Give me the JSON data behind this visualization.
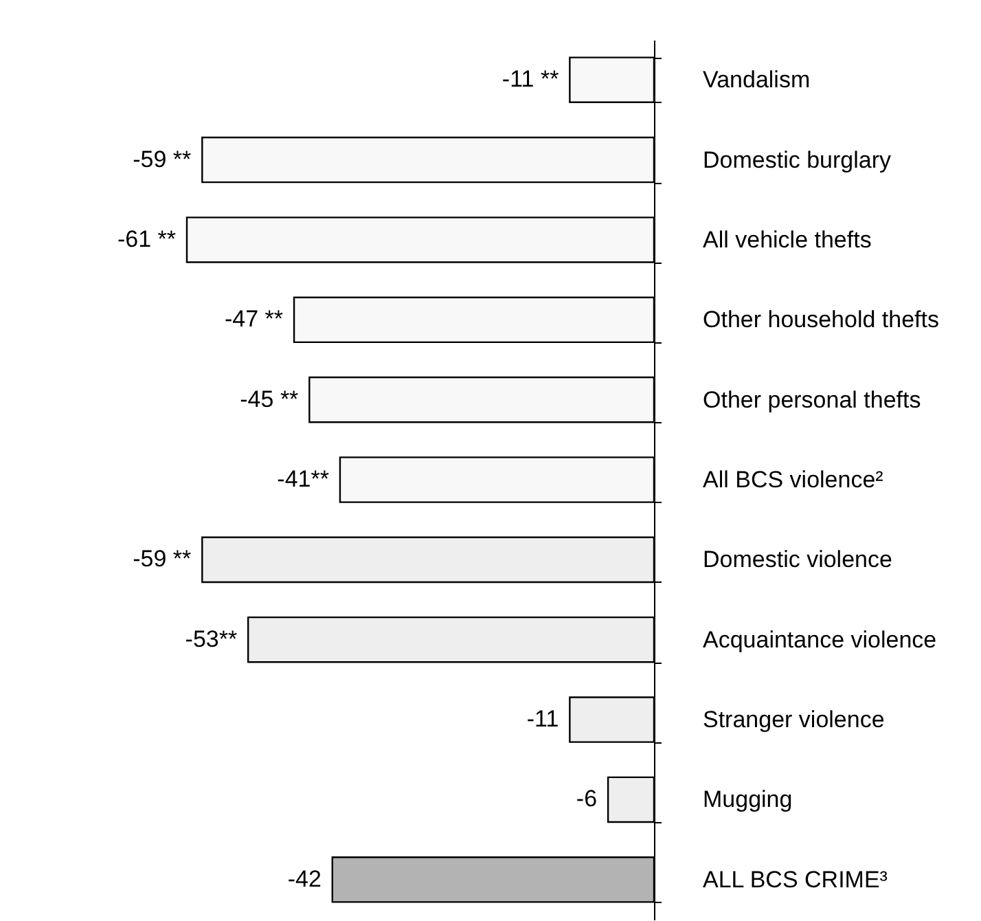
{
  "chart_data": {
    "type": "bar",
    "orientation": "horizontal",
    "categories": [
      "Vandalism",
      "Domestic burglary",
      "All vehicle thefts",
      "Other household thefts",
      "Other personal thefts",
      "All BCS violence²",
      "Domestic violence",
      "Acquaintance violence",
      "Stranger violence",
      "Mugging",
      "ALL BCS CRIME³"
    ],
    "values": [
      -11,
      -59,
      -61,
      -47,
      -45,
      -41,
      -59,
      -53,
      -11,
      -6,
      -42
    ],
    "colors": [
      "#f8f8f8",
      "#f8f8f8",
      "#f8f8f8",
      "#f8f8f8",
      "#f8f8f8",
      "#f8f8f8",
      "#eeeeee",
      "#eeeeee",
      "#eeeeee",
      "#eeeeee",
      "#b3b3b3"
    ],
    "value_labels": [
      "-11 **",
      "-59 **",
      "-61 **",
      "-47 **",
      "-45 **",
      "-41**",
      "-59 **",
      "-53**",
      "-11",
      "-6",
      "-42"
    ],
    "grid": false
  }
}
